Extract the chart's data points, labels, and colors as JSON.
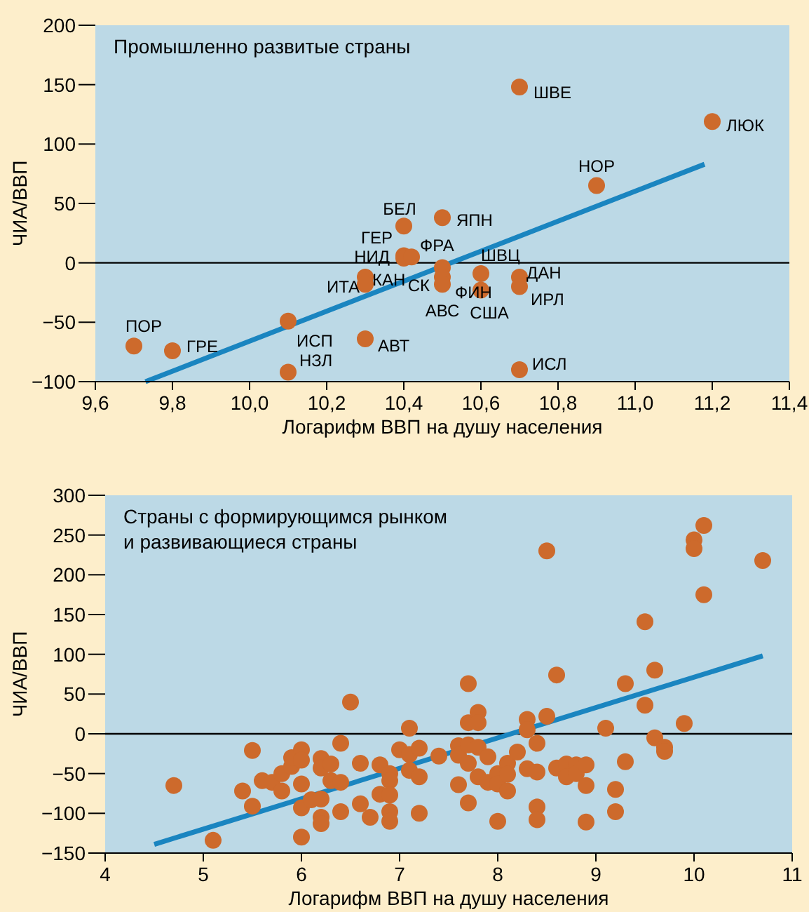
{
  "chart_data": [
    {
      "type": "scatter",
      "title": "Промышленно развитые страны",
      "xlabel": "Логарифм ВВП на душу населения",
      "ylabel": "ЧИА/ВВП",
      "marker": "circle",
      "xlim": [
        9.6,
        11.4
      ],
      "xticks": [
        {
          "value": 9.6,
          "label": "9,6"
        },
        {
          "value": 9.8,
          "label": "9,8"
        },
        {
          "value": 10.0,
          "label": "10,0"
        },
        {
          "value": 10.2,
          "label": "10,2"
        },
        {
          "value": 10.4,
          "label": "10,4"
        },
        {
          "value": 10.6,
          "label": "10,6"
        },
        {
          "value": 10.8,
          "label": "10,8"
        },
        {
          "value": 11.0,
          "label": "11,0"
        },
        {
          "value": 11.2,
          "label": "11,2"
        },
        {
          "value": 11.4,
          "label": "11,4"
        }
      ],
      "ylim": [
        -100,
        200
      ],
      "yticks": [
        {
          "value": -100,
          "label": "−100"
        },
        {
          "value": -50,
          "label": "−50"
        },
        0,
        50,
        100,
        150,
        200
      ],
      "ref_lines": [
        {
          "axis": "y",
          "value": 0,
          "color": "#000000"
        }
      ],
      "series": [
        {
          "color": "#cd6a2c",
          "x": [
            9.7,
            9.8,
            10.1,
            10.1,
            10.3,
            10.3,
            10.3,
            10.4,
            10.4,
            10.4,
            10.42,
            10.5,
            10.5,
            10.5,
            10.5,
            10.6,
            10.6,
            10.7,
            10.7,
            10.7,
            10.7,
            10.9,
            11.2
          ],
          "values": [
            -70,
            -74,
            -49,
            -92,
            -64,
            -12,
            -18,
            31,
            6,
            4,
            5,
            38,
            -4,
            -12,
            -18,
            -9,
            -23,
            -12,
            -20,
            -90,
            148,
            65,
            119
          ],
          "value_labels": [
            "ПОР",
            "ГРЕ",
            "ИСП",
            "НЗЛ",
            "АВТ",
            "ИТА",
            "КАН",
            "БЕЛ",
            "ГЕР",
            "НИД",
            "ФРА",
            "ЯПН",
            "СК",
            "ФИН",
            "АВС",
            "ШВЦ",
            "США",
            "ДАН",
            "ИРЛ",
            "ИСЛ",
            "ШВЕ",
            "НОР",
            "ЛЮК"
          ]
        },
        {
          "type": "line",
          "marker": "none",
          "color": "#1a85c0",
          "x": [
            9.73,
            11.18
          ],
          "values": [
            -100,
            83
          ]
        }
      ]
    },
    {
      "type": "scatter",
      "title": "Страны с формирующимся рынком\nи развивающиеся страны",
      "xlabel": "Логарифм ВВП на душу населения",
      "ylabel": "ЧИА/ВВП",
      "marker": "circle",
      "xlim": [
        4,
        11
      ],
      "xticks": [
        4,
        5,
        6,
        7,
        8,
        9,
        10,
        11
      ],
      "ylim": [
        -150,
        300
      ],
      "yticks": [
        {
          "value": -150,
          "label": "−150"
        },
        {
          "value": -100,
          "label": "−100"
        },
        {
          "value": -50,
          "label": "−50"
        },
        0,
        50,
        100,
        150,
        200,
        250,
        300
      ],
      "ref_lines": [
        {
          "axis": "y",
          "value": 0,
          "color": "#000000"
        }
      ],
      "series": [
        {
          "color": "#cd6a2c",
          "x": [
            4.7,
            5.1,
            5.4,
            5.5,
            5.5,
            5.6,
            5.7,
            5.8,
            5.8,
            5.9,
            5.9,
            6.0,
            6.0,
            6.0,
            6.0,
            6.0,
            6.1,
            6.2,
            6.2,
            6.3,
            6.2,
            6.2,
            6.2,
            6.3,
            6.4,
            6.4,
            6.4,
            6.5,
            6.6,
            6.6,
            6.7,
            6.8,
            6.8,
            6.9,
            6.9,
            6.9,
            6.9,
            6.9,
            7.0,
            7.1,
            7.1,
            7.1,
            7.2,
            7.2,
            7.2,
            7.4,
            7.6,
            7.6,
            7.6,
            7.7,
            7.7,
            7.7,
            7.7,
            7.7,
            7.8,
            7.8,
            7.8,
            7.8,
            7.9,
            7.9,
            8.0,
            8.0,
            8.0,
            8.1,
            8.1,
            8.1,
            8.2,
            8.3,
            8.3,
            8.3,
            8.4,
            8.4,
            8.4,
            8.4,
            8.5,
            8.5,
            8.6,
            8.6,
            8.7,
            8.7,
            8.8,
            8.8,
            8.9,
            8.9,
            8.9,
            9.1,
            9.2,
            9.2,
            9.3,
            9.3,
            9.5,
            9.5,
            9.6,
            9.6,
            9.7,
            9.7,
            9.9,
            10.0,
            10.0,
            10.1,
            10.1,
            10.7
          ],
          "values": [
            -65,
            -134,
            -72,
            -21,
            -91,
            -59,
            -61,
            -72,
            -50,
            -41,
            -30,
            -20,
            -33,
            -63,
            -93,
            -130,
            -83,
            -31,
            -43,
            -38,
            -82,
            -105,
            -113,
            -59,
            -12,
            -61,
            -98,
            40,
            -37,
            -88,
            -105,
            -39,
            -76,
            -50,
            -59,
            -77,
            -98,
            -110,
            -20,
            7,
            -26,
            -46,
            -18,
            -54,
            -100,
            -28,
            -15,
            -27,
            -64,
            63,
            14,
            -14,
            -37,
            -87,
            27,
            14,
            -17,
            -54,
            -29,
            -61,
            -50,
            -110,
            -63,
            -37,
            -51,
            -72,
            -23,
            18,
            5,
            -44,
            -12,
            -48,
            -92,
            -108,
            230,
            22,
            74,
            -43,
            -38,
            -54,
            -39,
            -50,
            -39,
            -65,
            -111,
            7,
            -70,
            -98,
            63,
            -35,
            141,
            36,
            80,
            -5,
            -17,
            -22,
            13,
            244,
            233,
            262,
            175,
            218
          ]
        },
        {
          "type": "line",
          "marker": "none",
          "color": "#1a85c0",
          "x": [
            4.5,
            10.7
          ],
          "values": [
            -139,
            98
          ]
        }
      ]
    }
  ]
}
